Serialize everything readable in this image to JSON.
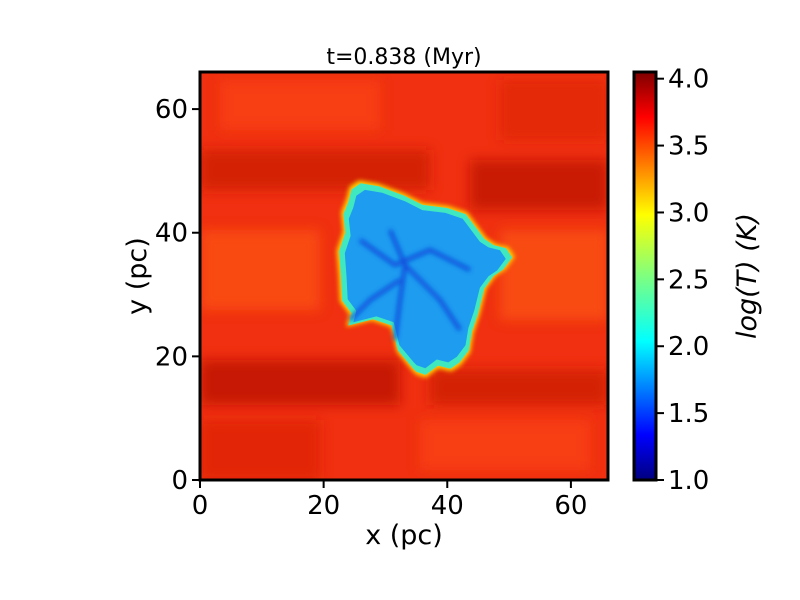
{
  "chart_data": {
    "type": "heatmap",
    "title": "t=0.838 (Myr)",
    "xlabel": "x (pc)",
    "ylabel": "y (pc)",
    "xlim": [
      0,
      66
    ],
    "ylim": [
      0,
      66
    ],
    "xticks": [
      0,
      20,
      40,
      60
    ],
    "yticks": [
      0,
      20,
      40,
      60
    ],
    "grid": false,
    "colorbar": {
      "label": "log(T) (K)",
      "range": [
        1.0,
        4.05
      ],
      "ticks": [
        "1.0",
        "1.5",
        "2.0",
        "2.5",
        "3.0",
        "3.5",
        "4.0"
      ],
      "colormap": "jet"
    },
    "description_regions": {
      "hot_ambient_logT": 3.85,
      "cold_cloud_logT": 1.7,
      "cold_cloud_boundary_pc": [
        [
          24.5,
          47
        ],
        [
          26,
          48
        ],
        [
          29,
          47.5
        ],
        [
          33,
          46
        ],
        [
          36,
          44.5
        ],
        [
          40,
          44
        ],
        [
          43,
          43
        ],
        [
          44.5,
          41
        ],
        [
          46,
          39
        ],
        [
          47.5,
          38
        ],
        [
          49.5,
          37.5
        ],
        [
          50.5,
          36
        ],
        [
          49,
          34
        ],
        [
          47.5,
          33
        ],
        [
          46,
          31
        ],
        [
          45,
          27
        ],
        [
          44,
          24
        ],
        [
          43.5,
          21
        ],
        [
          42,
          19
        ],
        [
          40.5,
          18
        ],
        [
          38.5,
          18.5
        ],
        [
          36.5,
          17
        ],
        [
          35,
          17.5
        ],
        [
          34.5,
          18
        ],
        [
          32,
          21
        ],
        [
          31,
          25
        ],
        [
          28,
          26
        ],
        [
          24,
          25
        ],
        [
          24.5,
          27
        ],
        [
          23,
          29
        ],
        [
          22.8,
          33
        ],
        [
          22.5,
          37
        ],
        [
          23.5,
          40
        ],
        [
          23.2,
          43
        ],
        [
          24,
          45
        ]
      ]
    }
  }
}
